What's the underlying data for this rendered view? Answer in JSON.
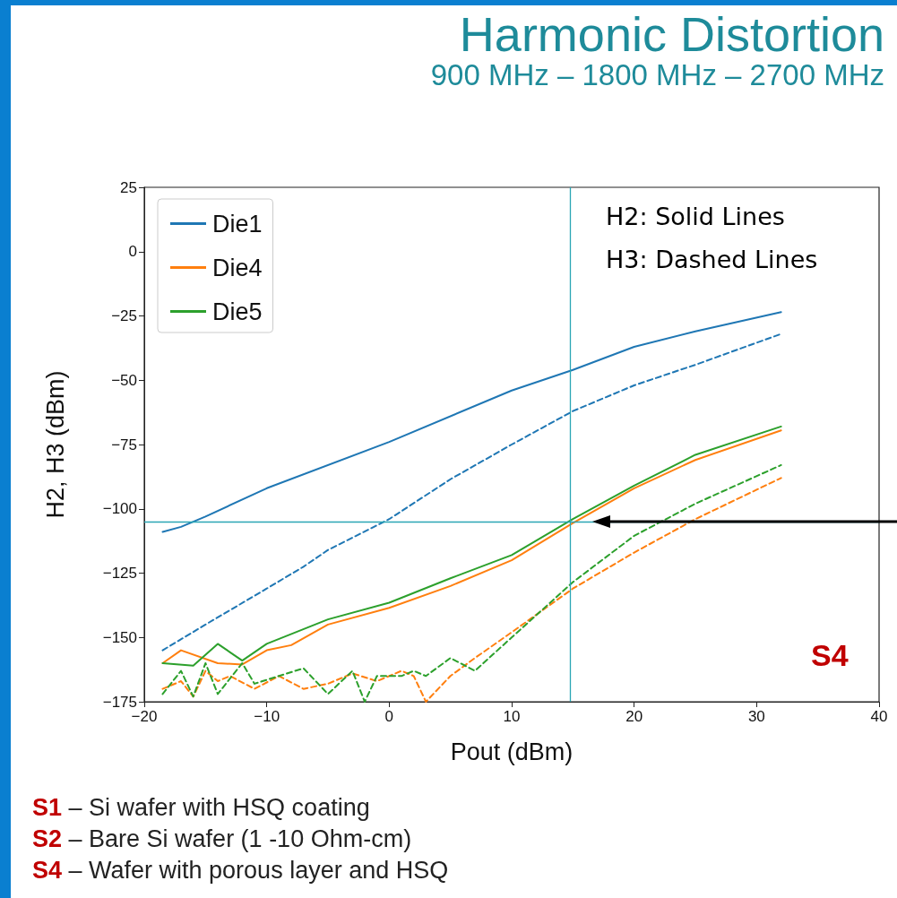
{
  "chart_data": {
    "type": "line",
    "title": "Harmonic Distortion",
    "subtitle": "900 MHz – 1800 MHz – 2700 MHz",
    "xlabel": "Pout (dBm)",
    "ylabel": "H2, H3 (dBm)",
    "xlim": [
      -20,
      40
    ],
    "xticks": [
      -20,
      -10,
      0,
      10,
      20,
      30,
      40
    ],
    "ylim": [
      -175,
      25
    ],
    "yticks": [
      -175,
      -150,
      -125,
      -100,
      -75,
      -50,
      -25,
      0,
      25
    ],
    "grid": false,
    "legend": "top left",
    "marker": "none",
    "series": [
      {
        "name": "Die1",
        "color": "#1f77b4",
        "line_style": "solid",
        "x": [
          -18.5,
          -17,
          -15,
          -10,
          0,
          10,
          15,
          20,
          25,
          32
        ],
        "values": [
          -109,
          -107,
          -103,
          -92,
          -74,
          -54,
          -46,
          -37,
          -31,
          -23.5
        ]
      },
      {
        "name": "Die4",
        "color": "#ff7f0e",
        "line_style": "solid",
        "x": [
          -18.5,
          -17,
          -14,
          -12,
          -10,
          -8,
          -5,
          0,
          5,
          10,
          15,
          20,
          25,
          32
        ],
        "values": [
          -160,
          -155,
          -160,
          -160.5,
          -155,
          -153,
          -145,
          -138.5,
          -130,
          -120,
          -105.5,
          -92,
          -81,
          -69.5
        ]
      },
      {
        "name": "Die5",
        "color": "#2ca02c",
        "line_style": "solid",
        "x": [
          -18.5,
          -16,
          -14,
          -12,
          -10,
          -5,
          0,
          5,
          10,
          15,
          20,
          25,
          32
        ],
        "values": [
          -160,
          -161,
          -152.5,
          -159,
          -152.5,
          -143,
          -136.5,
          -127,
          -118,
          -104,
          -91,
          -79,
          -68
        ]
      },
      {
        "color": "#1f77b4",
        "line_style": "dashed",
        "x": [
          -18.5,
          -15,
          -10,
          -7,
          -5,
          0,
          5,
          10,
          15,
          20,
          25,
          32
        ],
        "values": [
          -155,
          -145,
          -131,
          -122.5,
          -116,
          -104,
          -88.5,
          -75,
          -62,
          -52,
          -44,
          -32
        ]
      },
      {
        "color": "#ff7f0e",
        "line_style": "dashed",
        "x": [
          -18.5,
          -17,
          -16,
          -15,
          -14,
          -13,
          -11,
          -9,
          -7,
          -5,
          -3,
          -1,
          1,
          2,
          3,
          5,
          7,
          10,
          15,
          20,
          25,
          32
        ],
        "values": [
          -170,
          -167,
          -173,
          -163,
          -167,
          -165,
          -170,
          -165,
          -170,
          -168,
          -164,
          -167,
          -163,
          -165,
          -175,
          -165,
          -158,
          -148,
          -131,
          -117,
          -104,
          -88
        ]
      },
      {
        "color": "#2ca02c",
        "line_style": "dashed",
        "x": [
          -18.5,
          -17,
          -16,
          -15,
          -14,
          -12,
          -11,
          -9,
          -7,
          -5,
          -3,
          -2,
          -1,
          1,
          2,
          3,
          5,
          7,
          10,
          15,
          20,
          25,
          32
        ],
        "values": [
          -172,
          -163,
          -173,
          -160,
          -172,
          -160,
          -168,
          -165,
          -162,
          -172,
          -163,
          -175,
          -165,
          -165,
          -163,
          -165,
          -158,
          -163,
          -150,
          -128.5,
          -110.5,
          -98,
          -83
        ]
      }
    ],
    "ref_lines": [
      {
        "axis": "x",
        "value": 14.8,
        "color": "#2aa6b5"
      },
      {
        "axis": "y",
        "value": -105,
        "color": "#2aa6b5"
      }
    ],
    "annotations": [
      "H2: Solid Lines",
      "H3: Dashed Lines",
      "S4",
      "S1 – Si wafer with HSQ coating",
      "S2 – Bare Si wafer (1 -10 Ohm-cm)",
      "S4 – Wafer with porous layer and HSQ"
    ]
  }
}
